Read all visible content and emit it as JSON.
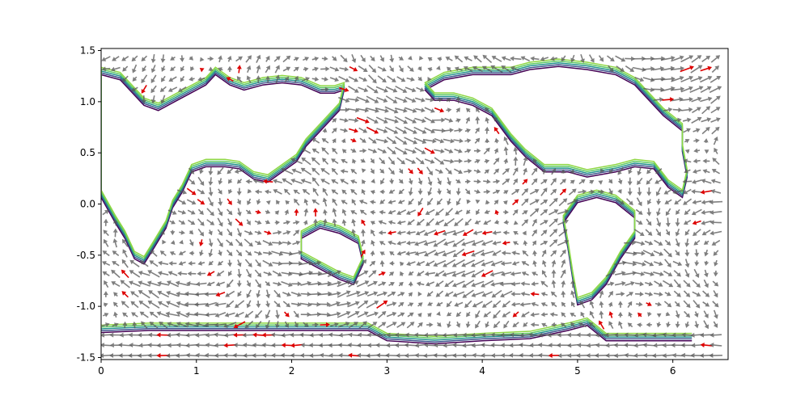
{
  "chart_data": {
    "type": "contour-quiver",
    "title": "",
    "xlabel": "",
    "ylabel": "",
    "xlim": [
      0,
      6.58
    ],
    "ylim": [
      -1.52,
      1.52
    ],
    "xticks": [
      "0",
      "1",
      "2",
      "3",
      "4",
      "5",
      "6"
    ],
    "yticks": [
      "1.5",
      "1.0",
      "0.5",
      "0.0",
      "-0.5",
      "-1.0",
      "-1.5"
    ],
    "grid": false,
    "legend": "none",
    "contour_colors": [
      "#440154",
      "#3b528b",
      "#21918c",
      "#5ec962",
      "#8fd744"
    ],
    "arrow_color": "#555555",
    "highlight_arrow_color": "#dd0000",
    "coastlines": [
      {
        "name": "americas",
        "points": [
          [
            0.0,
            1.3
          ],
          [
            0.2,
            1.25
          ],
          [
            0.3,
            1.15
          ],
          [
            0.45,
            1.0
          ],
          [
            0.6,
            0.95
          ],
          [
            0.8,
            1.05
          ],
          [
            1.0,
            1.15
          ],
          [
            1.1,
            1.2
          ],
          [
            1.2,
            1.3
          ],
          [
            1.35,
            1.2
          ],
          [
            1.5,
            1.15
          ],
          [
            1.7,
            1.2
          ],
          [
            1.9,
            1.22
          ],
          [
            2.1,
            1.2
          ],
          [
            2.3,
            1.12
          ],
          [
            2.45,
            1.12
          ],
          [
            2.55,
            1.15
          ],
          [
            2.5,
            0.95
          ],
          [
            2.3,
            0.75
          ],
          [
            2.15,
            0.6
          ],
          [
            2.05,
            0.45
          ],
          [
            1.9,
            0.35
          ],
          [
            1.75,
            0.25
          ],
          [
            1.6,
            0.28
          ],
          [
            1.45,
            0.38
          ],
          [
            1.3,
            0.4
          ],
          [
            1.1,
            0.4
          ],
          [
            0.95,
            0.35
          ],
          [
            0.85,
            0.15
          ],
          [
            0.75,
            0.0
          ],
          [
            0.68,
            -0.2
          ],
          [
            0.55,
            -0.4
          ],
          [
            0.45,
            -0.55
          ],
          [
            0.35,
            -0.5
          ],
          [
            0.25,
            -0.3
          ],
          [
            0.15,
            -0.15
          ],
          [
            0.0,
            0.1
          ]
        ]
      },
      {
        "name": "africa-eurasia",
        "points": [
          [
            3.4,
            1.15
          ],
          [
            3.6,
            1.25
          ],
          [
            3.9,
            1.3
          ],
          [
            4.3,
            1.3
          ],
          [
            4.5,
            1.35
          ],
          [
            4.8,
            1.38
          ],
          [
            5.1,
            1.35
          ],
          [
            5.4,
            1.3
          ],
          [
            5.6,
            1.2
          ],
          [
            5.75,
            1.05
          ],
          [
            5.9,
            0.9
          ],
          [
            6.1,
            0.75
          ],
          [
            6.1,
            0.55
          ],
          [
            6.15,
            0.3
          ],
          [
            6.1,
            0.1
          ],
          [
            5.95,
            0.2
          ],
          [
            5.8,
            0.38
          ],
          [
            5.6,
            0.4
          ],
          [
            5.4,
            0.35
          ],
          [
            5.1,
            0.3
          ],
          [
            4.9,
            0.35
          ],
          [
            4.65,
            0.35
          ],
          [
            4.45,
            0.5
          ],
          [
            4.3,
            0.65
          ],
          [
            4.1,
            0.9
          ],
          [
            3.9,
            1.0
          ],
          [
            3.7,
            1.05
          ],
          [
            3.5,
            1.05
          ]
        ]
      },
      {
        "name": "south-landmass",
        "points": [
          [
            5.0,
            0.05
          ],
          [
            5.2,
            0.1
          ],
          [
            5.4,
            0.05
          ],
          [
            5.6,
            -0.1
          ],
          [
            5.6,
            -0.3
          ],
          [
            5.45,
            -0.5
          ],
          [
            5.3,
            -0.75
          ],
          [
            5.15,
            -0.9
          ],
          [
            5.0,
            -0.95
          ],
          [
            4.95,
            -0.7
          ],
          [
            4.9,
            -0.4
          ],
          [
            4.85,
            -0.15
          ]
        ]
      },
      {
        "name": "australia",
        "points": [
          [
            2.1,
            -0.3
          ],
          [
            2.3,
            -0.2
          ],
          [
            2.5,
            -0.25
          ],
          [
            2.7,
            -0.35
          ],
          [
            2.75,
            -0.55
          ],
          [
            2.65,
            -0.75
          ],
          [
            2.5,
            -0.7
          ],
          [
            2.3,
            -0.6
          ],
          [
            2.1,
            -0.5
          ]
        ]
      },
      {
        "name": "antarctic-coast",
        "points": [
          [
            0.0,
            -1.22
          ],
          [
            0.5,
            -1.2
          ],
          [
            1.0,
            -1.2
          ],
          [
            1.5,
            -1.2
          ],
          [
            2.0,
            -1.2
          ],
          [
            2.5,
            -1.2
          ],
          [
            2.8,
            -1.2
          ],
          [
            3.0,
            -1.3
          ],
          [
            3.5,
            -1.33
          ],
          [
            4.0,
            -1.3
          ],
          [
            4.5,
            -1.28
          ],
          [
            4.9,
            -1.2
          ],
          [
            5.1,
            -1.15
          ],
          [
            5.3,
            -1.3
          ],
          [
            5.8,
            -1.3
          ],
          [
            6.2,
            -1.3
          ]
        ]
      }
    ]
  }
}
